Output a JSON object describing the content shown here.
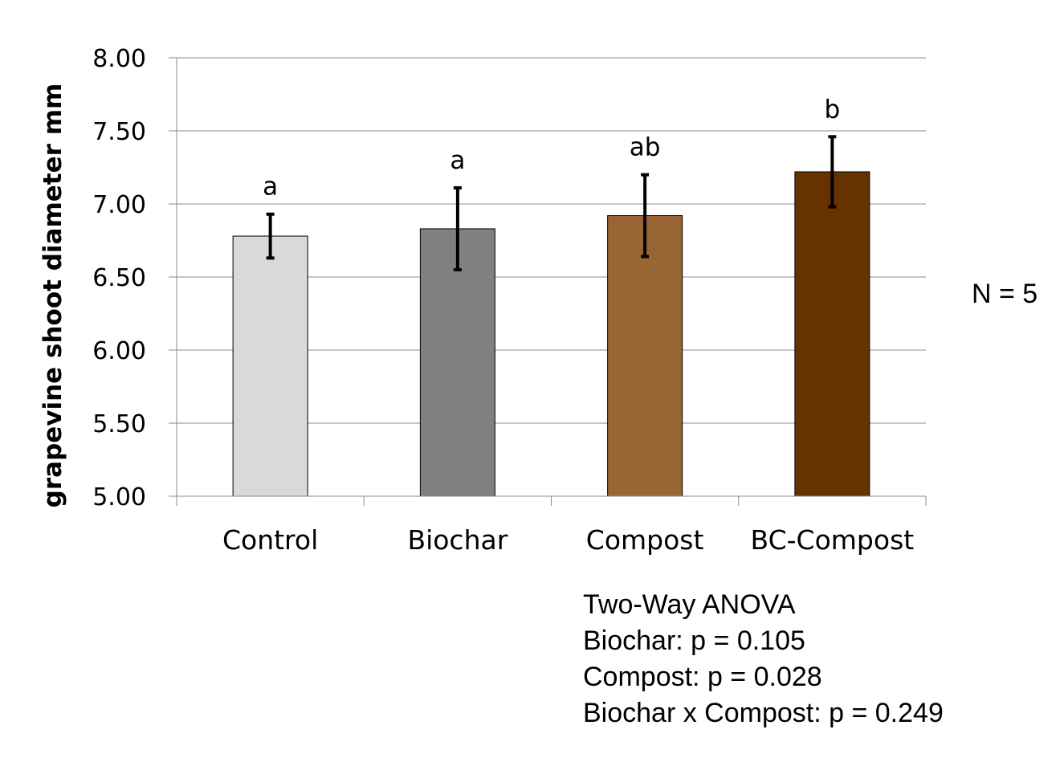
{
  "chart_data": {
    "type": "bar",
    "title": "",
    "xlabel": "",
    "ylabel": "grapevine shoot diameter mm",
    "ylim": [
      5.0,
      8.0
    ],
    "yticks": [
      "5.00",
      "5.50",
      "6.00",
      "6.50",
      "7.00",
      "7.50",
      "8.00"
    ],
    "grid": true,
    "categories": [
      "Control",
      "Biochar",
      "Compost",
      "BC-Compost"
    ],
    "values": [
      6.78,
      6.83,
      6.92,
      7.22
    ],
    "error": [
      0.15,
      0.28,
      0.28,
      0.24
    ],
    "significance_letters": [
      "a",
      "a",
      "ab",
      "b"
    ],
    "bar_colors": [
      "#d9d9d9",
      "#808080",
      "#996633",
      "#663300"
    ]
  },
  "annotations": {
    "n_label": "N = 5",
    "anova_lines": [
      "Two-Way ANOVA",
      "Biochar: p = 0.105",
      "Compost: p = 0.028",
      "Biochar x Compost: p = 0.249"
    ]
  }
}
